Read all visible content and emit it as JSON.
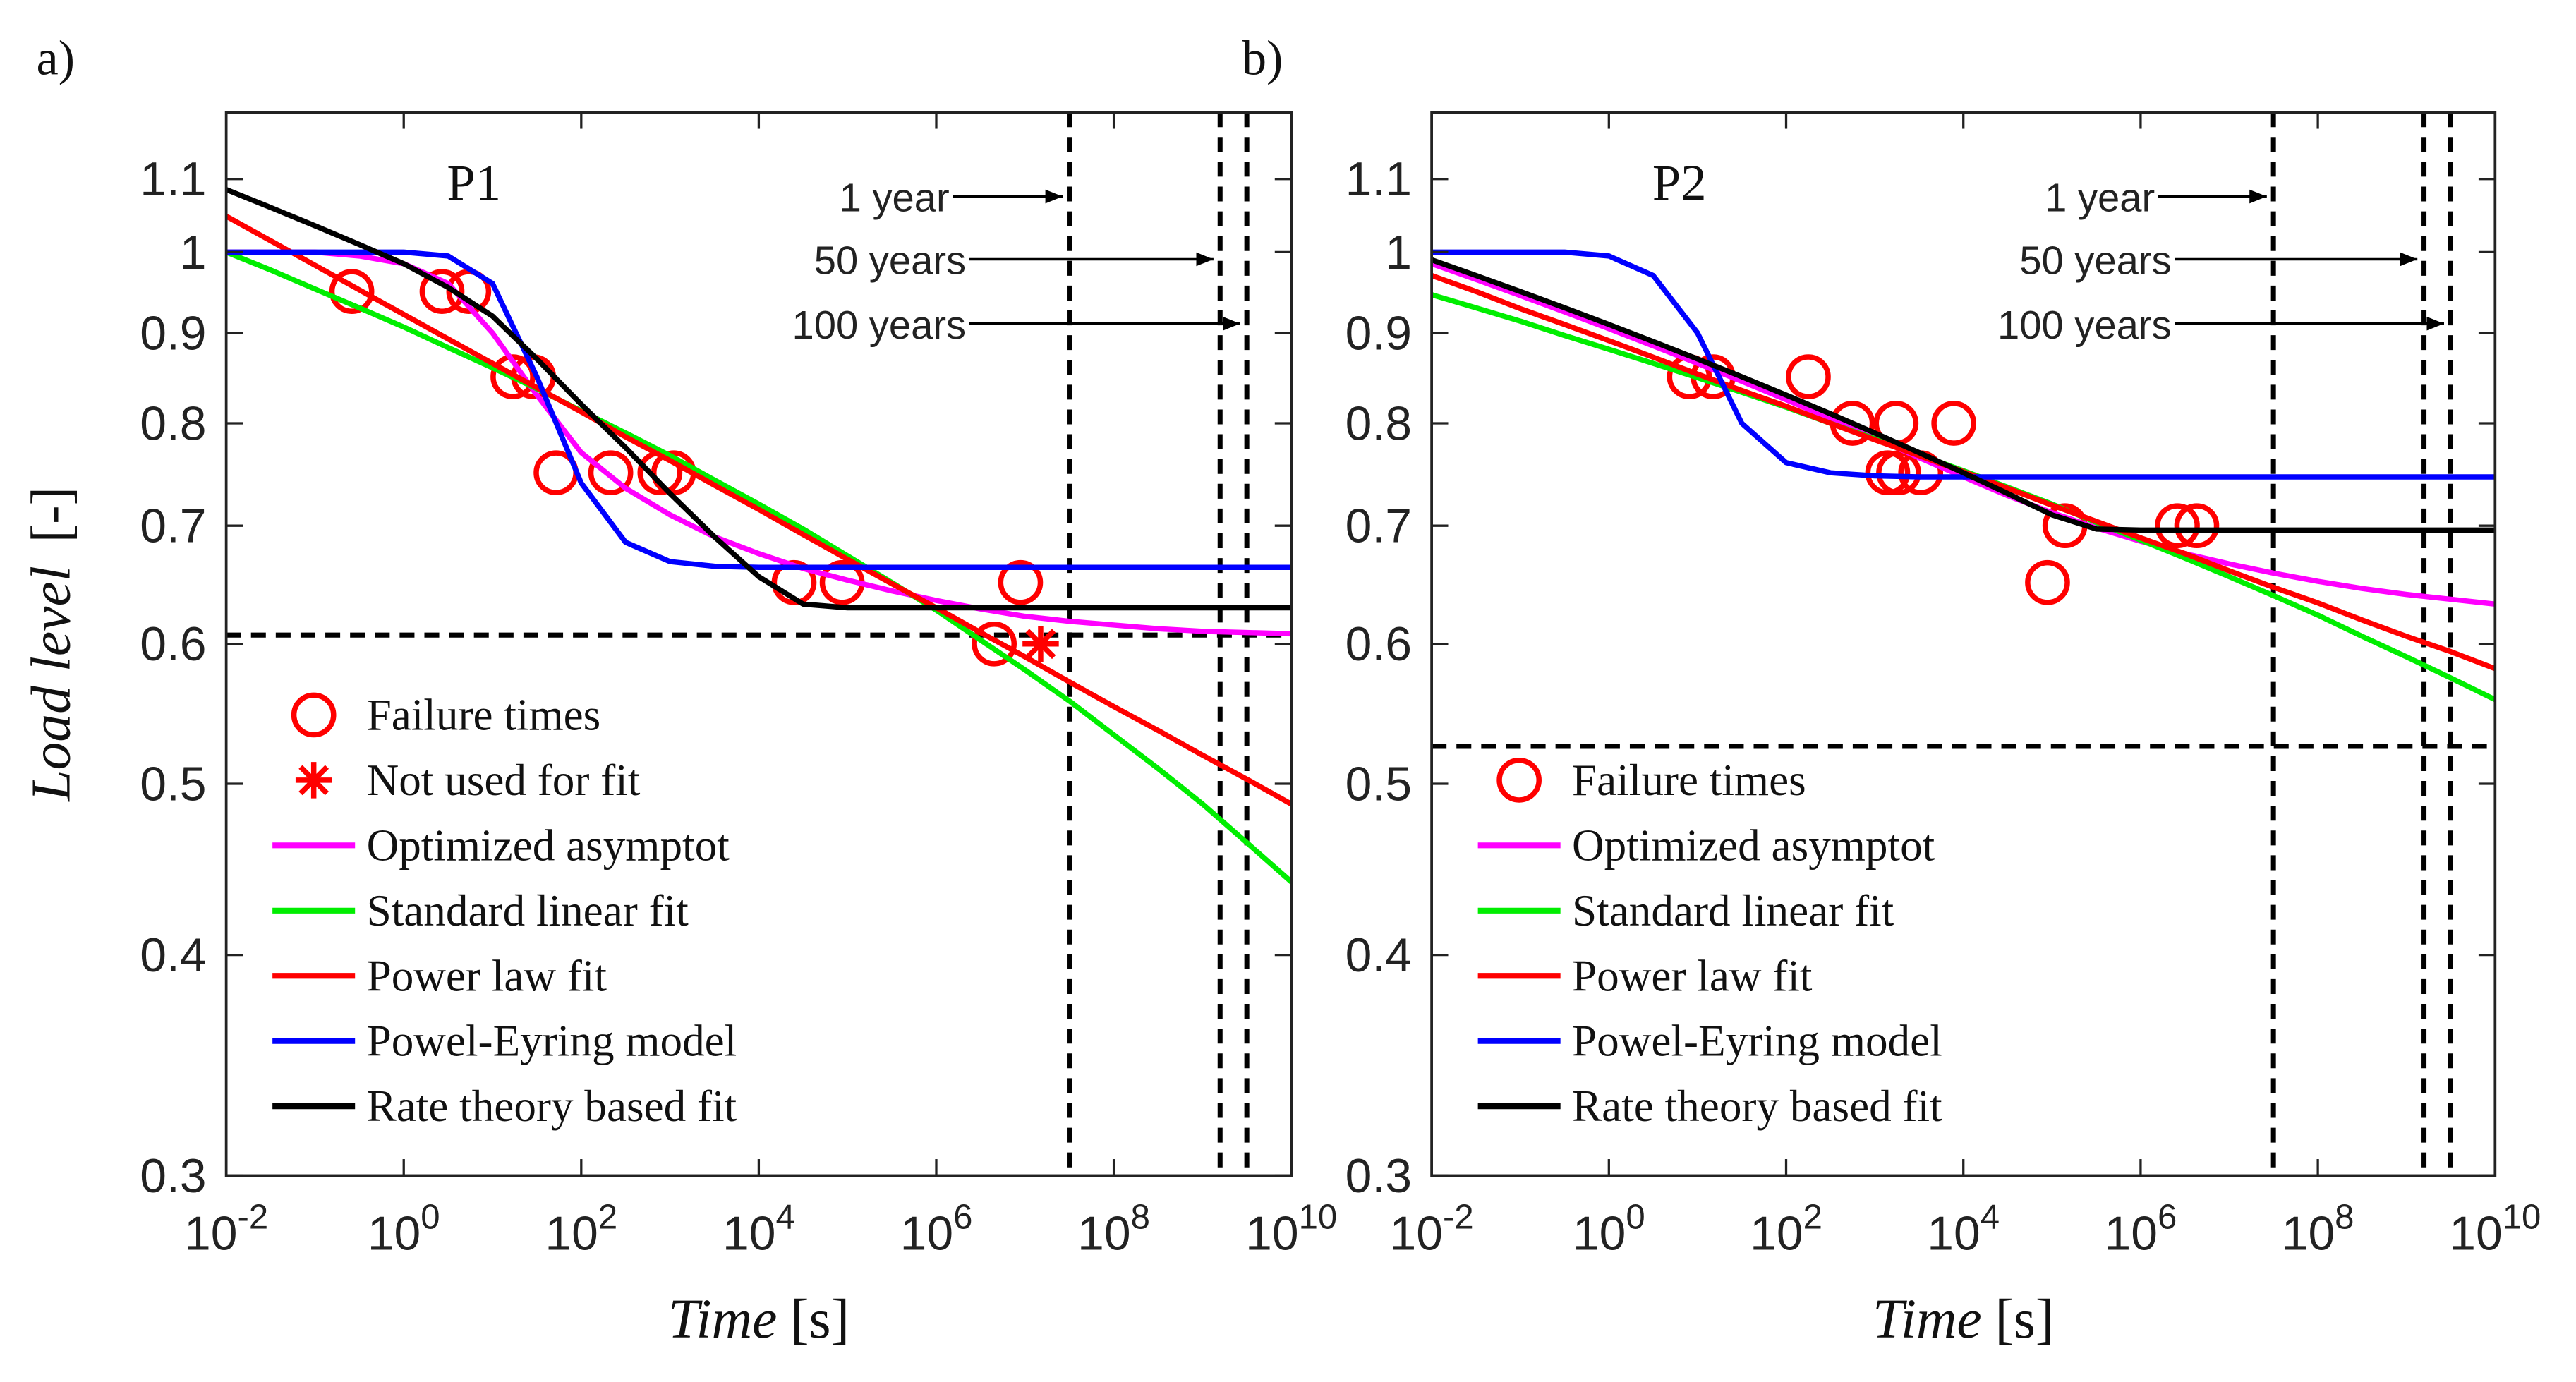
{
  "chart_data": [
    {
      "type": "line",
      "panel_label": "a)",
      "title": "P1",
      "xlabel": "Time",
      "xlabel_unit": "[s]",
      "ylabel": "Load level",
      "ylabel_unit": "[-]",
      "xscale": "log",
      "yscale": "log",
      "xlim": [
        0.01,
        10000000000
      ],
      "ylim": [
        0.3,
        1.2
      ],
      "xticks": [
        {
          "value": 0.01,
          "label": "10-2"
        },
        {
          "value": 1,
          "label": "100"
        },
        {
          "value": 100,
          "label": "102"
        },
        {
          "value": 10000,
          "label": "104"
        },
        {
          "value": 1000000,
          "label": "106"
        },
        {
          "value": 100000000,
          "label": "108"
        },
        {
          "value": 10000000000,
          "label": "1010"
        }
      ],
      "yticks": [
        0.3,
        0.4,
        0.5,
        0.6,
        0.7,
        0.8,
        0.9,
        1,
        1.1
      ],
      "legend": "lower left",
      "x": [
        0.01,
        0.0316,
        0.1,
        0.316,
        1,
        3.16,
        10,
        31.6,
        100,
        316,
        1000,
        3162,
        10000,
        31623,
        100000,
        316228,
        1000000,
        3162278,
        10000000,
        31622777,
        100000000,
        316227766,
        1000000000,
        3162277660,
        10000000000
      ],
      "series": [
        {
          "name": "Failure times",
          "color": "#ff0000",
          "marker": "circle",
          "x": [
            0.26,
            2.7,
            5.4,
            17,
            29,
            52,
            215,
            770,
            1100,
            25000,
            87000,
            4500000,
            8900000
          ],
          "values": [
            0.95,
            0.95,
            0.95,
            0.85,
            0.85,
            0.75,
            0.75,
            0.75,
            0.75,
            0.65,
            0.65,
            0.6,
            0.65
          ]
        },
        {
          "name": "Not used for fit",
          "color": "#ff0000",
          "marker": "asterisk",
          "x": [
            15000000
          ],
          "values": [
            0.6
          ]
        },
        {
          "name": "Optimized asymptot",
          "color": "#ff00ff",
          "values": [
            1.0,
            1.0,
            1.0,
            0.995,
            0.985,
            0.96,
            0.9,
            0.83,
            0.77,
            0.735,
            0.71,
            0.69,
            0.675,
            0.662,
            0.652,
            0.643,
            0.635,
            0.628,
            0.622,
            0.618,
            0.615,
            0.612,
            0.61,
            0.609,
            0.608
          ]
        },
        {
          "name": "Standard linear fit",
          "color": "#00ee00",
          "values": [
            1.0,
            0.977,
            0.953,
            0.93,
            0.907,
            0.883,
            0.86,
            0.837,
            0.813,
            0.79,
            0.767,
            0.743,
            0.72,
            0.697,
            0.673,
            0.65,
            0.627,
            0.603,
            0.58,
            0.557,
            0.533,
            0.51,
            0.487,
            0.463,
            0.44
          ]
        },
        {
          "name": "Power law fit",
          "color": "#ff0000",
          "values": [
            1.048,
            1.015,
            0.983,
            0.952,
            0.922,
            0.893,
            0.865,
            0.838,
            0.812,
            0.786,
            0.762,
            0.738,
            0.715,
            0.692,
            0.67,
            0.649,
            0.629,
            0.609,
            0.59,
            0.571,
            0.553,
            0.536,
            0.519,
            0.503,
            0.487
          ]
        },
        {
          "name": "Powel-Eyring model",
          "color": "#0000ff",
          "values": [
            1,
            1,
            1,
            1,
            1,
            0.995,
            0.96,
            0.85,
            0.74,
            0.685,
            0.668,
            0.664,
            0.663,
            0.663,
            0.663,
            0.663,
            0.663,
            0.663,
            0.663,
            0.663,
            0.663,
            0.663,
            0.663,
            0.663,
            0.663
          ]
        },
        {
          "name": "Rate theory based fit",
          "color": "#000000",
          "values": [
            1.085,
            1.06,
            1.035,
            1.01,
            0.985,
            0.955,
            0.92,
            0.87,
            0.82,
            0.775,
            0.73,
            0.69,
            0.655,
            0.632,
            0.629,
            0.629,
            0.629,
            0.629,
            0.629,
            0.629,
            0.629,
            0.629,
            0.629,
            0.629,
            0.629
          ]
        }
      ],
      "vlines": [
        31536000,
        1576800000,
        3153600000
      ],
      "hline": 0.607,
      "annotations": [
        {
          "text": "1 year"
        },
        {
          "text": "50 years"
        },
        {
          "text": "100 years"
        }
      ]
    },
    {
      "type": "line",
      "panel_label": "b)",
      "title": "P2",
      "xlabel": "Time",
      "xlabel_unit": "[s]",
      "ylabel": null,
      "ylabel_unit": null,
      "xscale": "log",
      "yscale": "log",
      "xlim": [
        0.01,
        10000000000
      ],
      "ylim": [
        0.3,
        1.2
      ],
      "xticks": [
        {
          "value": 0.01,
          "label": "10-2"
        },
        {
          "value": 1,
          "label": "100"
        },
        {
          "value": 100,
          "label": "102"
        },
        {
          "value": 10000,
          "label": "104"
        },
        {
          "value": 1000000,
          "label": "106"
        },
        {
          "value": 100000000,
          "label": "108"
        },
        {
          "value": 10000000000,
          "label": "1010"
        }
      ],
      "yticks": [
        0.3,
        0.4,
        0.5,
        0.6,
        0.7,
        0.8,
        0.9,
        1,
        1.1
      ],
      "legend": "lower left",
      "x": [
        0.01,
        0.0316,
        0.1,
        0.316,
        1,
        3.16,
        10,
        31.6,
        100,
        316,
        1000,
        3162,
        10000,
        31623,
        100000,
        316228,
        1000000,
        3162278,
        10000000,
        31622777,
        100000000,
        316227766,
        1000000000,
        3162277660,
        10000000000
      ],
      "series": [
        {
          "name": "Failure times",
          "color": "#ff0000",
          "marker": "circle",
          "x": [
            8.1,
            15,
            178,
            560,
            1740,
            1400,
            1860,
            3300,
            7800,
            89000,
            140000,
            2600000,
            4300000
          ],
          "values": [
            0.85,
            0.85,
            0.85,
            0.8,
            0.8,
            0.75,
            0.75,
            0.75,
            0.8,
            0.65,
            0.7,
            0.7,
            0.7
          ]
        },
        {
          "name": "Optimized asymptot",
          "color": "#ff00ff",
          "values": [
            0.985,
            0.965,
            0.945,
            0.925,
            0.905,
            0.885,
            0.865,
            0.845,
            0.825,
            0.805,
            0.785,
            0.765,
            0.746,
            0.728,
            0.712,
            0.698,
            0.686,
            0.675,
            0.666,
            0.658,
            0.651,
            0.645,
            0.64,
            0.636,
            0.632
          ]
        },
        {
          "name": "Standard linear fit",
          "color": "#00ee00",
          "values": [
            0.946,
            0.93,
            0.914,
            0.897,
            0.881,
            0.865,
            0.849,
            0.833,
            0.817,
            0.8,
            0.784,
            0.768,
            0.752,
            0.736,
            0.72,
            0.703,
            0.687,
            0.671,
            0.655,
            0.639,
            0.623,
            0.606,
            0.59,
            0.574,
            0.558
          ]
        },
        {
          "name": "Power law fit",
          "color": "#ff0000",
          "values": [
            0.97,
            0.95,
            0.929,
            0.91,
            0.891,
            0.872,
            0.853,
            0.835,
            0.818,
            0.8,
            0.783,
            0.767,
            0.751,
            0.735,
            0.719,
            0.704,
            0.689,
            0.675,
            0.66,
            0.646,
            0.633,
            0.619,
            0.606,
            0.594,
            0.581
          ]
        },
        {
          "name": "Powel-Eyring model",
          "color": "#0000ff",
          "values": [
            1,
            1,
            1,
            1,
            0.995,
            0.97,
            0.9,
            0.8,
            0.76,
            0.75,
            0.747,
            0.746,
            0.746,
            0.746,
            0.746,
            0.746,
            0.746,
            0.746,
            0.746,
            0.746,
            0.746,
            0.746,
            0.746,
            0.746,
            0.746
          ]
        },
        {
          "name": "Rate theory based fit",
          "color": "#000000",
          "values": [
            0.99,
            0.97,
            0.95,
            0.93,
            0.91,
            0.89,
            0.87,
            0.85,
            0.83,
            0.81,
            0.79,
            0.77,
            0.75,
            0.73,
            0.71,
            0.697,
            0.696,
            0.696,
            0.696,
            0.696,
            0.696,
            0.696,
            0.696,
            0.696,
            0.696
          ]
        }
      ],
      "vlines": [
        31536000,
        1576800000,
        3153600000
      ],
      "hline": 0.525,
      "annotations": [
        {
          "text": "1 year"
        },
        {
          "text": "50 years"
        },
        {
          "text": "100 years"
        }
      ]
    }
  ]
}
